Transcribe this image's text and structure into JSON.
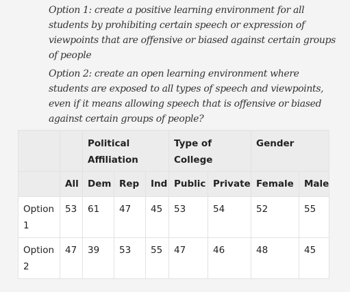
{
  "options": {
    "option1": "Option 1: create a positive learning environment for all students by prohibiting certain speech or expression of viewpoints that are offensive or biased against certain groups of people",
    "option2": "Option 2: create an open learning environment where students are exposed to all types of speech and viewpoints, even if it means allowing speech that is offensive or biased against certain groups of people?"
  },
  "table": {
    "group_headers": {
      "political": "Political Affiliation",
      "college": "Type of College",
      "gender": "Gender"
    },
    "columns": [
      "All",
      "Dem",
      "Rep",
      "Ind",
      "Public",
      "Private",
      "Female",
      "Male"
    ],
    "rows": [
      {
        "label": "Option 1",
        "values": [
          "53",
          "61",
          "47",
          "45",
          "53",
          "54",
          "52",
          "55"
        ]
      },
      {
        "label": "Option 2",
        "values": [
          "47",
          "39",
          "53",
          "55",
          "47",
          "46",
          "48",
          "45"
        ]
      }
    ]
  }
}
